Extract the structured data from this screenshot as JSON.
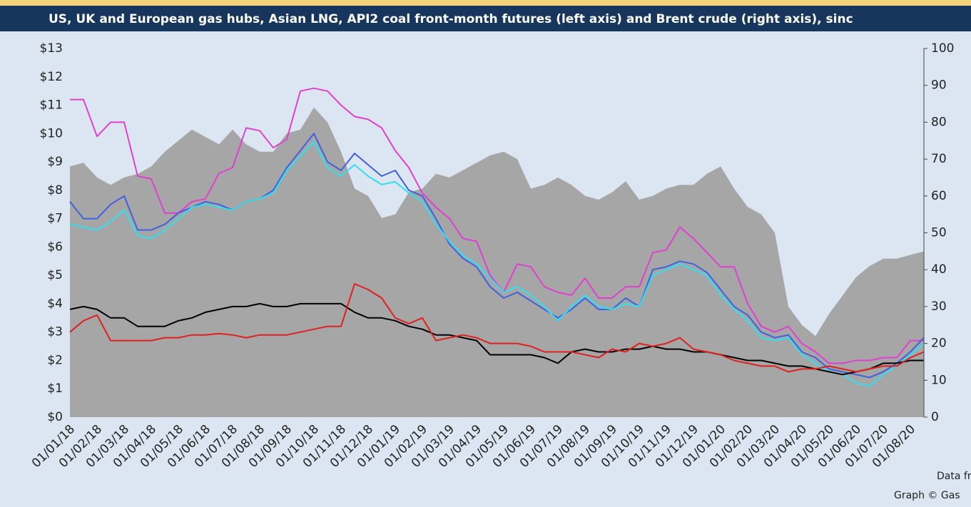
{
  "chart_data": {
    "type": "line",
    "title": "US, UK and European gas hubs, Asian LNG, API2 coal front-month futures (left axis) and Brent crude (right axis), sinc",
    "annotations": [
      "Data fro",
      "Graph © Gas"
    ],
    "categories": [
      "01/01/18",
      null,
      "01/02/18",
      null,
      "01/03/18",
      null,
      "01/04/18",
      null,
      "01/05/18",
      null,
      "01/06/18",
      null,
      "01/07/18",
      null,
      "01/08/18",
      null,
      "01/09/18",
      null,
      "01/10/18",
      null,
      "01/11/18",
      null,
      "01/12/18",
      null,
      "01/01/19",
      null,
      "01/02/19",
      null,
      "01/03/19",
      null,
      "01/04/19",
      null,
      "01/05/19",
      null,
      "01/06/19",
      null,
      "01/07/19",
      null,
      "01/08/19",
      null,
      "01/09/19",
      null,
      "01/10/19",
      null,
      "01/11/19",
      null,
      "01/12/19",
      null,
      "01/01/20",
      null,
      "01/02/20",
      null,
      "01/03/20",
      null,
      "01/04/20",
      null,
      "01/05/20",
      null,
      "01/06/20",
      null,
      "01/07/20",
      null,
      "01/08/20",
      null
    ],
    "ylim": [
      0,
      13
    ],
    "yticks": [
      {
        "value": 0,
        "label": "$0"
      },
      {
        "value": 1,
        "label": "$1"
      },
      {
        "value": 2,
        "label": "$2"
      },
      {
        "value": 3,
        "label": "$3"
      },
      {
        "value": 4,
        "label": "$4"
      },
      {
        "value": 5,
        "label": "$5"
      },
      {
        "value": 6,
        "label": "$6"
      },
      {
        "value": 7,
        "label": "$7"
      },
      {
        "value": 8,
        "label": "$8"
      },
      {
        "value": 9,
        "label": "$9"
      },
      {
        "value": 10,
        "label": "$10"
      },
      {
        "value": 11,
        "label": "$11"
      },
      {
        "value": 12,
        "label": "$12"
      },
      {
        "value": 13,
        "label": "$13"
      }
    ],
    "y2lim": [
      0,
      100
    ],
    "y2ticks": [
      0,
      10,
      20,
      30,
      40,
      50,
      60,
      70,
      80,
      90,
      100
    ],
    "grid": false,
    "series": [
      {
        "type": "area",
        "axis": "y2",
        "color": "#a6a6a6",
        "values": [
          68,
          69,
          65,
          63,
          65,
          66,
          68,
          72,
          75,
          78,
          76,
          74,
          78,
          74,
          72,
          72,
          77,
          78,
          84,
          80,
          72,
          62,
          60,
          54,
          55,
          61,
          62,
          66,
          65,
          67,
          69,
          71,
          72,
          70,
          62,
          63,
          65,
          63,
          60,
          59,
          61,
          64,
          59,
          60,
          62,
          63,
          63,
          66,
          68,
          62,
          57,
          55,
          50,
          30,
          25,
          22,
          28,
          33,
          38,
          41,
          43,
          43,
          44,
          45
        ]
      },
      {
        "type": "line",
        "color": "#e040d0",
        "values": [
          11.2,
          11.2,
          9.9,
          10.4,
          10.4,
          8.5,
          8.4,
          7.2,
          7.2,
          7.6,
          7.7,
          8.6,
          8.8,
          10.2,
          10.1,
          9.5,
          9.8,
          11.5,
          11.6,
          11.5,
          11.0,
          10.6,
          10.5,
          10.2,
          9.4,
          8.8,
          7.9,
          7.4,
          7.0,
          6.3,
          6.2,
          5.0,
          4.4,
          5.4,
          5.3,
          4.6,
          4.4,
          4.3,
          4.9,
          4.2,
          4.2,
          4.6,
          4.6,
          5.8,
          5.9,
          6.7,
          6.3,
          5.8,
          5.3,
          5.3,
          4.0,
          3.2,
          3.0,
          3.2,
          2.6,
          2.3,
          1.9,
          1.9,
          2.0,
          2.0,
          2.1,
          2.1,
          2.7,
          2.7
        ]
      },
      {
        "type": "line",
        "color": "#4060e0",
        "values": [
          7.6,
          7.0,
          7.0,
          7.5,
          7.8,
          6.6,
          6.6,
          6.8,
          7.2,
          7.4,
          7.6,
          7.5,
          7.3,
          7.6,
          7.7,
          8.0,
          8.8,
          9.4,
          10.0,
          9.0,
          8.7,
          9.3,
          8.9,
          8.5,
          8.7,
          8.0,
          7.8,
          7.0,
          6.1,
          5.6,
          5.3,
          4.6,
          4.2,
          4.4,
          4.1,
          3.8,
          3.5,
          3.8,
          4.2,
          3.8,
          3.8,
          4.2,
          3.9,
          5.2,
          5.3,
          5.5,
          5.4,
          5.1,
          4.5,
          3.9,
          3.6,
          3.0,
          2.8,
          2.9,
          2.3,
          2.1,
          1.7,
          1.6,
          1.5,
          1.4,
          1.6,
          1.9,
          2.3,
          2.8
        ]
      },
      {
        "type": "line",
        "color": "#30e0f0",
        "values": [
          6.8,
          6.7,
          6.6,
          6.9,
          7.3,
          6.4,
          6.3,
          6.6,
          7.0,
          7.4,
          7.5,
          7.4,
          7.3,
          7.6,
          7.7,
          7.9,
          8.7,
          9.2,
          9.7,
          8.8,
          8.5,
          8.9,
          8.5,
          8.2,
          8.3,
          7.9,
          7.6,
          6.8,
          6.2,
          5.7,
          5.4,
          4.9,
          4.4,
          4.6,
          4.3,
          3.9,
          3.4,
          3.9,
          4.3,
          3.9,
          3.8,
          4.0,
          3.9,
          5.0,
          5.2,
          5.4,
          5.2,
          5.0,
          4.3,
          3.8,
          3.4,
          2.8,
          2.7,
          2.8,
          2.2,
          1.9,
          1.6,
          1.5,
          1.2,
          1.1,
          1.5,
          1.8,
          2.2,
          2.6
        ]
      },
      {
        "type": "line",
        "color": "#000000",
        "values": [
          3.8,
          3.9,
          3.8,
          3.5,
          3.5,
          3.2,
          3.2,
          3.2,
          3.4,
          3.5,
          3.7,
          3.8,
          3.9,
          3.9,
          4.0,
          3.9,
          3.9,
          4.0,
          4.0,
          4.0,
          4.0,
          3.7,
          3.5,
          3.5,
          3.4,
          3.2,
          3.1,
          2.9,
          2.9,
          2.8,
          2.7,
          2.2,
          2.2,
          2.2,
          2.2,
          2.1,
          1.9,
          2.3,
          2.4,
          2.3,
          2.3,
          2.4,
          2.4,
          2.5,
          2.4,
          2.4,
          2.3,
          2.3,
          2.2,
          2.1,
          2.0,
          2.0,
          1.9,
          1.8,
          1.8,
          1.7,
          1.6,
          1.5,
          1.6,
          1.7,
          1.9,
          1.9,
          2.0,
          2.0
        ]
      },
      {
        "type": "line",
        "color": "#e02020",
        "values": [
          3.0,
          3.4,
          3.6,
          2.7,
          2.7,
          2.7,
          2.7,
          2.8,
          2.8,
          2.9,
          2.9,
          2.95,
          2.9,
          2.8,
          2.9,
          2.9,
          2.9,
          3.0,
          3.1,
          3.2,
          3.2,
          4.7,
          4.5,
          4.2,
          3.5,
          3.3,
          3.5,
          2.7,
          2.8,
          2.9,
          2.8,
          2.6,
          2.6,
          2.6,
          2.5,
          2.3,
          2.3,
          2.3,
          2.2,
          2.1,
          2.4,
          2.3,
          2.6,
          2.5,
          2.6,
          2.8,
          2.4,
          2.3,
          2.2,
          2.0,
          1.9,
          1.8,
          1.8,
          1.6,
          1.7,
          1.7,
          1.8,
          1.7,
          1.6,
          1.7,
          1.8,
          1.8,
          2.1,
          2.3
        ]
      }
    ]
  }
}
